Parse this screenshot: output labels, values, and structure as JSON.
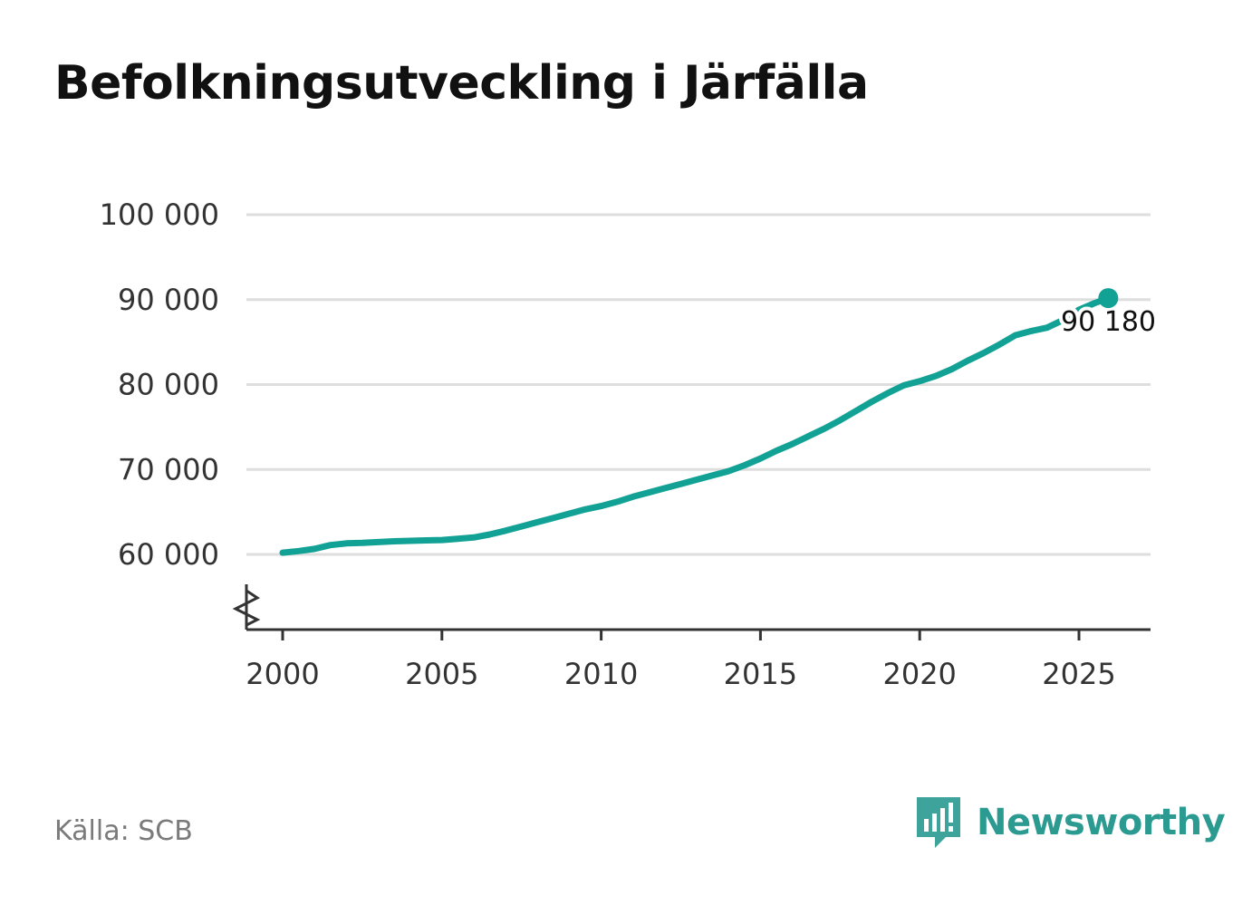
{
  "title": "Befolkningsutveckling i Järfälla",
  "source": "Källa: SCB",
  "brand": {
    "name": "Newsworthy",
    "icon": "newsworthy-logo-icon"
  },
  "colors": {
    "line": "#12a195",
    "grid": "#dedede",
    "axis": "#333333",
    "text": "#333333"
  },
  "chart_data": {
    "type": "line",
    "title": "Befolkningsutveckling i Järfälla",
    "xlabel": "",
    "ylabel": "",
    "xlim": [
      1999.5,
      2027.2
    ],
    "ylim": [
      53500,
      100000
    ],
    "y_axis_break": true,
    "grid": "horizontal",
    "xticks": [
      2000,
      2005,
      2010,
      2015,
      2020,
      2025
    ],
    "yticks": [
      60000,
      70000,
      80000,
      90000,
      100000
    ],
    "ytick_labels": [
      "60 000",
      "70 000",
      "80 000",
      "90 000",
      "100 000"
    ],
    "series": [
      {
        "name": "",
        "x": [
          2000.0,
          2000.5,
          2001.0,
          2001.5,
          2002.0,
          2002.5,
          2003.0,
          2003.5,
          2004.0,
          2004.5,
          2005.0,
          2005.5,
          2006.0,
          2006.5,
          2007.0,
          2007.5,
          2008.0,
          2008.5,
          2009.0,
          2009.5,
          2010.0,
          2010.5,
          2011.0,
          2011.5,
          2012.0,
          2012.5,
          2013.0,
          2013.5,
          2014.0,
          2014.5,
          2015.0,
          2015.5,
          2016.0,
          2016.5,
          2017.0,
          2017.5,
          2018.0,
          2018.5,
          2019.0,
          2019.5,
          2020.0,
          2020.5,
          2021.0,
          2021.5,
          2022.0,
          2022.5,
          2023.0,
          2023.5,
          2024.0,
          2024.5,
          2025.0,
          2025.5,
          2025.92
        ],
        "y": [
          60200,
          60400,
          60650,
          61100,
          61300,
          61350,
          61450,
          61550,
          61600,
          61650,
          61700,
          61850,
          62000,
          62350,
          62800,
          63300,
          63800,
          64300,
          64800,
          65300,
          65700,
          66200,
          66800,
          67300,
          67800,
          68300,
          68800,
          69300,
          69800,
          70500,
          71300,
          72200,
          73000,
          73900,
          74800,
          75800,
          76900,
          78000,
          79000,
          79900,
          80400,
          81000,
          81800,
          82800,
          83700,
          84700,
          85800,
          86300,
          86700,
          87600,
          88800,
          89600,
          90180
        ]
      }
    ],
    "last_label": "90 180"
  }
}
